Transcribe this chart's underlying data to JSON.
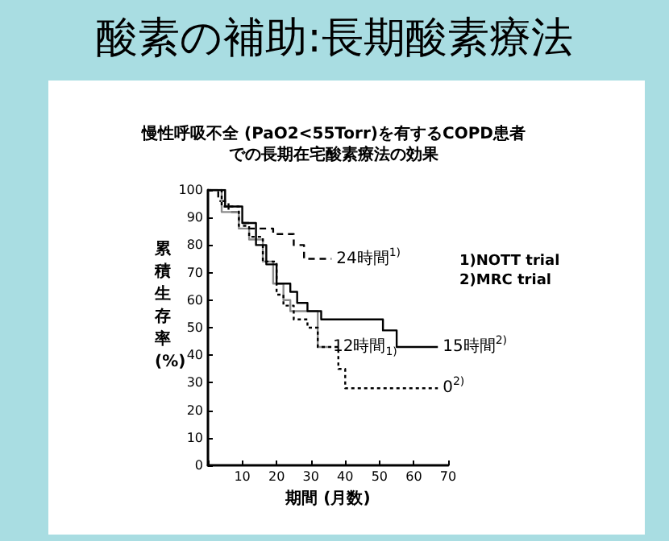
{
  "chart_data": {
    "type": "step",
    "title": "酸素の補助:長期酸素療法",
    "subtitle": "慢性呼吸不全 (PaO2<55Torr)を有するCOPD患者での長期在宅酸素療法の効果",
    "xlabel": "期間 (月数)",
    "ylabel": "累積生存率 (%)",
    "annotations": [
      "1)NOTT trial",
      "2)MRC trial"
    ],
    "xlim": [
      0,
      70
    ],
    "xticks": [
      {
        "value": 0,
        "label": null
      },
      10,
      20,
      30,
      40,
      50,
      60,
      70
    ],
    "ylim": [
      0,
      100
    ],
    "yticks": [
      0,
      10,
      20,
      30,
      40,
      50,
      60,
      70,
      80,
      90,
      100
    ],
    "grid": false,
    "legend": false,
    "marker": "none",
    "series": [
      {
        "name": "24時間$^{1)}$",
        "color": "#000000",
        "line_style": "dashed",
        "x": [
          0,
          3,
          6,
          9,
          12,
          19,
          25,
          28,
          36
        ],
        "values": [
          100,
          96,
          92,
          88,
          86,
          84,
          80,
          75,
          75
        ]
      },
      {
        "name": "12時間$_{1)}$",
        "color": "#8c8c8c",
        "line_style": "solid",
        "x": [
          0,
          4,
          9,
          12,
          16,
          19,
          22,
          24,
          31,
          32,
          35
        ],
        "values": [
          100,
          92,
          86,
          82,
          74,
          66,
          60,
          56,
          56,
          43,
          43
        ]
      },
      {
        "name": "15時間$^{2)}$",
        "color": "#000000",
        "line_style": "solid",
        "x": [
          0,
          5,
          10,
          14,
          17,
          20,
          24,
          26,
          29,
          33,
          49,
          51,
          55,
          67
        ],
        "values": [
          100,
          94,
          88,
          80,
          73,
          66,
          63,
          59,
          56,
          53,
          53,
          49,
          43,
          43
        ]
      },
      {
        "name": "0$^{2)}$",
        "color": "#000000",
        "line_style": "dotted",
        "x": [
          0,
          4,
          9,
          12,
          16,
          20,
          22,
          25,
          29,
          32,
          36,
          38,
          40,
          67
        ],
        "values": [
          100,
          94,
          87,
          83,
          74,
          62,
          58,
          53,
          50,
          43,
          43,
          35,
          28,
          28
        ]
      }
    ]
  }
}
